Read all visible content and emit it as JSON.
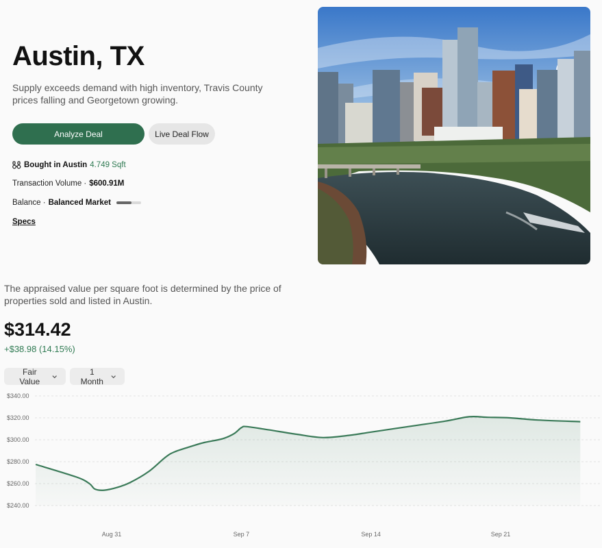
{
  "header": {
    "title": "Austin, TX",
    "subtitle": "Supply exceeds demand with high inventory, Travis County prices falling and Georgetown growing."
  },
  "actions": {
    "analyze_label": "Analyze Deal",
    "live_label": "Live Deal Flow"
  },
  "stats": {
    "bought_label": "Bought in Austin",
    "bought_value": "4.749 Sqft",
    "volume_label": "Transaction Volume ·",
    "volume_value": "$600.91M",
    "balance_label": "Balance ·",
    "balance_value": "Balanced Market",
    "balance_level": 0.6,
    "specs_label": "Specs"
  },
  "icons": {
    "bought": "binoculars-icon",
    "dropdown": "chevron-down-icon"
  },
  "valuation": {
    "description": "The appraised value per square foot is determined by the price of properties sold and listed in Austin.",
    "price": "$314.42",
    "change": "+$38.98 (14.15%)"
  },
  "filters": {
    "metric": "Fair Value",
    "period": "1 Month"
  },
  "colors": {
    "accent": "#2f6f4f",
    "positive": "#2f7a52",
    "line": "#3a7a58"
  },
  "chart_data": {
    "type": "area",
    "title": "",
    "xlabel": "",
    "ylabel": "",
    "x_ticks": [
      "Aug 31",
      "Sep 7",
      "Sep 14",
      "Sep 21"
    ],
    "y_ticks": [
      "$340.00",
      "$320.00",
      "$300.00",
      "$280.00",
      "$260.00",
      "$240.00"
    ],
    "ylim": [
      240,
      340
    ],
    "grid": true,
    "x_start_offset_days": -4.1,
    "points": [
      [
        -4.1,
        277.5
      ],
      [
        -1.9,
        266
      ],
      [
        -1.2,
        260
      ],
      [
        -0.9,
        255
      ],
      [
        -0.4,
        254
      ],
      [
        0.3,
        256.5
      ],
      [
        1.0,
        261
      ],
      [
        2.0,
        271
      ],
      [
        2.9,
        284
      ],
      [
        3.4,
        289
      ],
      [
        4.3,
        294
      ],
      [
        5.0,
        297.5
      ],
      [
        6.0,
        301
      ],
      [
        6.6,
        305.5
      ],
      [
        7.0,
        311
      ],
      [
        7.3,
        312
      ],
      [
        8.5,
        309
      ],
      [
        10.0,
        305
      ],
      [
        11.4,
        302
      ],
      [
        12.8,
        304
      ],
      [
        14.0,
        307
      ],
      [
        16.0,
        312
      ],
      [
        18.0,
        317
      ],
      [
        19.3,
        321
      ],
      [
        20.3,
        320.5
      ],
      [
        21.5,
        320
      ],
      [
        23.0,
        318
      ],
      [
        25.3,
        316.5
      ]
    ]
  }
}
